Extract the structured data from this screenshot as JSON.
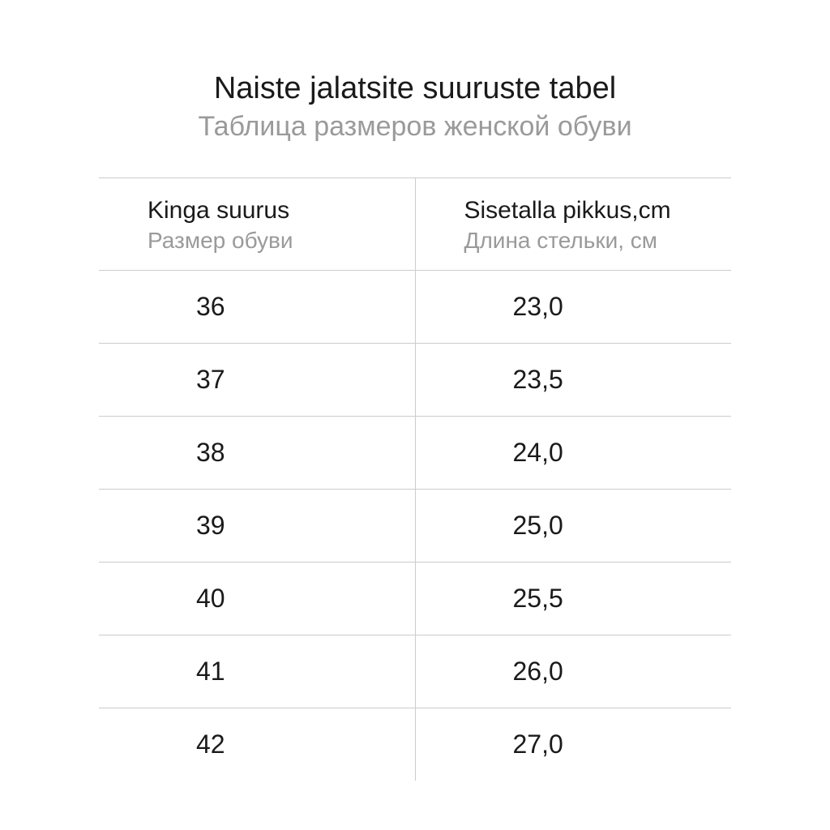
{
  "title": {
    "primary": "Naiste jalatsite suuruste tabel",
    "secondary": "Таблица размеров женской обуви"
  },
  "table": {
    "type": "table",
    "columns": [
      {
        "primary": "Kinga suurus",
        "secondary": "Размер обуви"
      },
      {
        "primary": "Sisetalla pikkus,cm",
        "secondary": "Длина стельки, см"
      }
    ],
    "rows": [
      [
        "36",
        "23,0"
      ],
      [
        "37",
        "23,5"
      ],
      [
        "38",
        "24,0"
      ],
      [
        "39",
        "25,0"
      ],
      [
        "40",
        "25,5"
      ],
      [
        "41",
        "26,0"
      ],
      [
        "42",
        "27,0"
      ]
    ],
    "styling": {
      "background_color": "#ffffff",
      "border_color": "#cccccc",
      "text_color_primary": "#1a1a1a",
      "text_color_secondary": "#9a9a9a",
      "title_fontsize_primary": 38,
      "title_fontsize_secondary": 34,
      "header_fontsize_primary": 30,
      "header_fontsize_secondary": 28,
      "cell_fontsize": 32,
      "font_family": "Arial",
      "column_widths": [
        "50%",
        "50%"
      ],
      "cell_padding_vertical": 26,
      "header_padding_vertical": 20,
      "cell_text_indent": 120,
      "header_text_indent": 60
    }
  }
}
